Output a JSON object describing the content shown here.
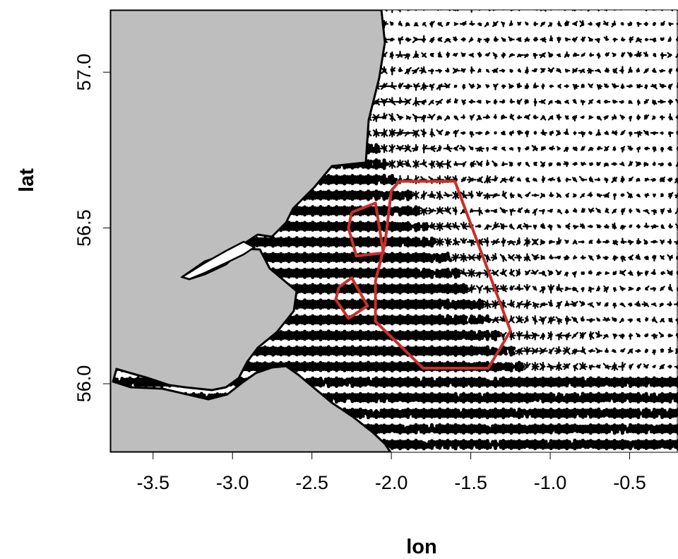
{
  "map": {
    "x_axis_title": "lon",
    "y_axis_title": "lat",
    "x_ticks": [
      "-3.5",
      "-3.0",
      "-2.5",
      "-2.0",
      "-1.5",
      "-1.0",
      "-0.5"
    ],
    "y_ticks": [
      "56.0",
      "56.5",
      "57.0"
    ],
    "x_range": [
      -3.77,
      -0.2
    ],
    "y_range": [
      55.78,
      57.2
    ],
    "land_color": "#bebebe",
    "sea_color": "#ffffff",
    "glyph_color": "#000000",
    "boundary_color": "#c8302c",
    "coastline_color": "#000000"
  },
  "chart_data": {
    "type": "scatter",
    "title": "",
    "xlabel": "lon",
    "ylabel": "lat",
    "xlim": [
      -3.77,
      -0.2
    ],
    "ylim": [
      55.78,
      57.2
    ],
    "grid": false,
    "grid_spacing": {
      "lon": 0.05,
      "lat": 0.05
    },
    "marker": "star-glyph per grid cell (filled disc where all rays are long)",
    "boundary_polygons": [
      {
        "name": "",
        "points": [
          [
            -1.95,
            56.65
          ],
          [
            -1.6,
            56.65
          ],
          [
            -1.25,
            56.17
          ],
          [
            -1.39,
            56.05
          ],
          [
            -1.8,
            56.05
          ],
          [
            -2.1,
            56.2
          ],
          [
            -2.1,
            56.33
          ],
          [
            -2.04,
            56.45
          ],
          [
            -2.0,
            56.62
          ],
          [
            -1.95,
            56.65
          ]
        ]
      },
      {
        "name": "",
        "points": [
          [
            -2.25,
            56.55
          ],
          [
            -2.1,
            56.58
          ],
          [
            -2.05,
            56.42
          ],
          [
            -2.22,
            56.41
          ],
          [
            -2.27,
            56.5
          ],
          [
            -2.25,
            56.55
          ]
        ]
      },
      {
        "name": "",
        "points": [
          [
            -2.33,
            56.31
          ],
          [
            -2.25,
            56.34
          ],
          [
            -2.15,
            56.25
          ],
          [
            -2.27,
            56.21
          ],
          [
            -2.35,
            56.27
          ],
          [
            -2.33,
            56.31
          ]
        ]
      }
    ]
  }
}
